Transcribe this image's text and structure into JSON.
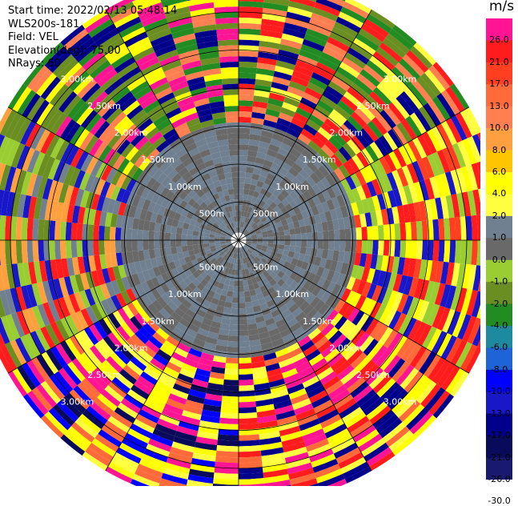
{
  "header": {
    "start_time": "Start time: 2022/02/13 05:48:14",
    "instrument": "WLS200s-181",
    "field": "Field: VEL",
    "elevation": "Elevation(deg): 75.00",
    "nrays": "NRays: 60"
  },
  "colorbar": {
    "units": "m/s",
    "levels": [
      26.0,
      21.0,
      17.0,
      13.0,
      10.0,
      8.0,
      6.0,
      4.0,
      2.0,
      1.0,
      0.0,
      -1.0,
      -2.0,
      -4.0,
      -6.0,
      -8.0,
      -10.0,
      -13.0,
      -17.0,
      -21.0,
      -26.0,
      -30.0
    ],
    "labels": [
      "26.0",
      "21.0",
      "17.0",
      "13.0",
      "10.0",
      "8.0",
      "6.0",
      "4.0",
      "2.0",
      "1.0",
      "0.0",
      "-1.0",
      "-2.0",
      "-4.0",
      "-6.0",
      "-8.0",
      "-10.0",
      "-13.0",
      "-17.0",
      "-21.0",
      "-26.0",
      "-30.0"
    ],
    "colors": [
      "#ff1493",
      "#ff1c1c",
      "#ff3f1f",
      "#ff6a3a",
      "#ff7f50",
      "#ffa040",
      "#ffc600",
      "#ffff00",
      "#ffff40",
      "#708090",
      "#696969",
      "#9acd32",
      "#6b8e23",
      "#228b22",
      "#1e8aa0",
      "#1e64d6",
      "#0000ff",
      "#1818c8",
      "#00008b",
      "#0a0a5a",
      "#191970"
    ]
  },
  "chart_data": {
    "type": "ppi-radar",
    "field": "VEL",
    "units": "m/s",
    "elevation_deg": 75.0,
    "nrays": 60,
    "start_time": "2022/02/13 05:48:14",
    "range_rings_km": [
      0.5,
      1.0,
      1.5,
      2.0,
      2.5,
      3.0
    ],
    "ring_labels": [
      "500m",
      "1.00km",
      "1.50km",
      "2.00km",
      "2.50km",
      "3.00km"
    ],
    "max_range_km": 3.5,
    "gate_km": 0.0725,
    "min_range_km": 0.1,
    "azimuth_lines_deg": [
      0,
      30,
      60,
      90,
      120,
      150,
      180,
      210,
      240,
      270,
      300,
      330
    ],
    "ray_width_deg": 6,
    "pattern": {
      "inner_region_km": 1.55,
      "inner_values_ms": [
        -0.5,
        0.5
      ],
      "outer_sector_values": [
        {
          "az_from": 0,
          "az_to": 60,
          "values": [
            -2.0,
            -4.0,
            10.0,
            21.0,
            -17.0,
            2.0
          ]
        },
        {
          "az_from": 60,
          "az_to": 120,
          "values": [
            2.0,
            -1.0,
            17.0,
            21.0,
            -13.0,
            4.0
          ]
        },
        {
          "az_from": 120,
          "az_to": 180,
          "values": [
            4.0,
            2.0,
            13.0,
            21.0,
            26.0,
            -17.0
          ]
        },
        {
          "az_from": 180,
          "az_to": 240,
          "values": [
            4.0,
            2.0,
            -10.0,
            26.0,
            13.0,
            -21.0
          ]
        },
        {
          "az_from": 240,
          "az_to": 300,
          "values": [
            -1.0,
            -2.0,
            0.5,
            21.0,
            -13.0,
            8.0
          ]
        },
        {
          "az_from": 300,
          "az_to": 360,
          "values": [
            -2.0,
            -4.0,
            -17.0,
            26.0,
            10.0,
            4.0
          ]
        }
      ]
    }
  }
}
